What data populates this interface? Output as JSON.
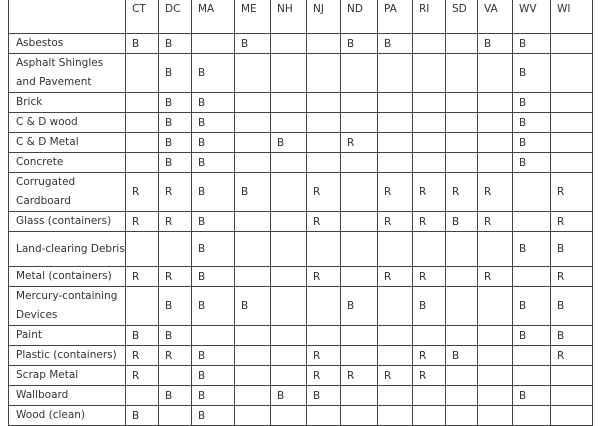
{
  "columns": [
    "",
    "CT",
    "DC",
    "MA",
    "ME",
    "NH",
    "NJ",
    "ND",
    "PA",
    "RI",
    "SD",
    "VA",
    "WV",
    "WI"
  ],
  "rows": [
    {
      "label": "Asbestos",
      "cells": [
        "B",
        "B",
        "",
        "B",
        "",
        "",
        "B",
        "B",
        "",
        "",
        "B",
        "B",
        ""
      ]
    },
    {
      "label": "Asphalt Shingles and Pavement",
      "cells": [
        "",
        "B",
        "B",
        "",
        "",
        "",
        "",
        "",
        "",
        "",
        "",
        "B",
        ""
      ]
    },
    {
      "label": "Brick",
      "cells": [
        "",
        "B",
        "B",
        "",
        "",
        "",
        "",
        "",
        "",
        "",
        "",
        "B",
        ""
      ]
    },
    {
      "label": "C & D wood",
      "cells": [
        "",
        "B",
        "B",
        "",
        "",
        "",
        "",
        "",
        "",
        "",
        "",
        "B",
        ""
      ]
    },
    {
      "label": "C & D Metal",
      "cells": [
        "",
        "B",
        "B",
        "",
        "B",
        "",
        "R",
        "",
        "",
        "",
        "",
        "B",
        ""
      ]
    },
    {
      "label": "Concrete",
      "cells": [
        "",
        "B",
        "B",
        "",
        "",
        "",
        "",
        "",
        "",
        "",
        "",
        "B",
        ""
      ]
    },
    {
      "label": "Corrugated Cardboard",
      "cells": [
        "R",
        "R",
        "B",
        "B",
        "",
        "R",
        "",
        "R",
        "R",
        "R",
        "R",
        "",
        "R"
      ]
    },
    {
      "label": "Glass (containers)",
      "cells": [
        "R",
        "R",
        "B",
        "",
        "",
        "R",
        "",
        "R",
        "R",
        "B",
        "R",
        "",
        "R"
      ]
    },
    {
      "label": "Land-clearing Debris",
      "cells": [
        "",
        "",
        "B",
        "",
        "",
        "",
        "",
        "",
        "",
        "",
        "",
        "B",
        "B"
      ]
    },
    {
      "label": "Metal (containers)",
      "cells": [
        "R",
        "R",
        "B",
        "",
        "",
        "R",
        "",
        "R",
        "R",
        "",
        "R",
        "",
        "R"
      ]
    },
    {
      "label": "Mercury-containing Devices",
      "cells": [
        "",
        "B",
        "B",
        "B",
        "",
        "",
        "B",
        "",
        "B",
        "",
        "",
        "B",
        "B"
      ]
    },
    {
      "label": "Paint",
      "cells": [
        "B",
        "B",
        "",
        "",
        "",
        "",
        "",
        "",
        "",
        "",
        "",
        "B",
        "B"
      ]
    },
    {
      "label": "Plastic (containers)",
      "cells": [
        "R",
        "R",
        "B",
        "",
        "",
        "R",
        "",
        "",
        "R",
        "B",
        "",
        "",
        "R"
      ]
    },
    {
      "label": "Scrap Metal",
      "cells": [
        "R",
        "",
        "B",
        "",
        "",
        "R",
        "R",
        "R",
        "R",
        "",
        "",
        "",
        ""
      ]
    },
    {
      "label": "Wallboard",
      "cells": [
        "",
        "B",
        "B",
        "",
        "B",
        "B",
        "",
        "",
        "",
        "",
        "",
        "B",
        ""
      ]
    },
    {
      "label": "Wood (clean)",
      "cells": [
        "B",
        "",
        "B",
        "",
        "",
        "",
        "",
        "",
        "",
        "",
        "",
        "",
        ""
      ]
    }
  ]
}
